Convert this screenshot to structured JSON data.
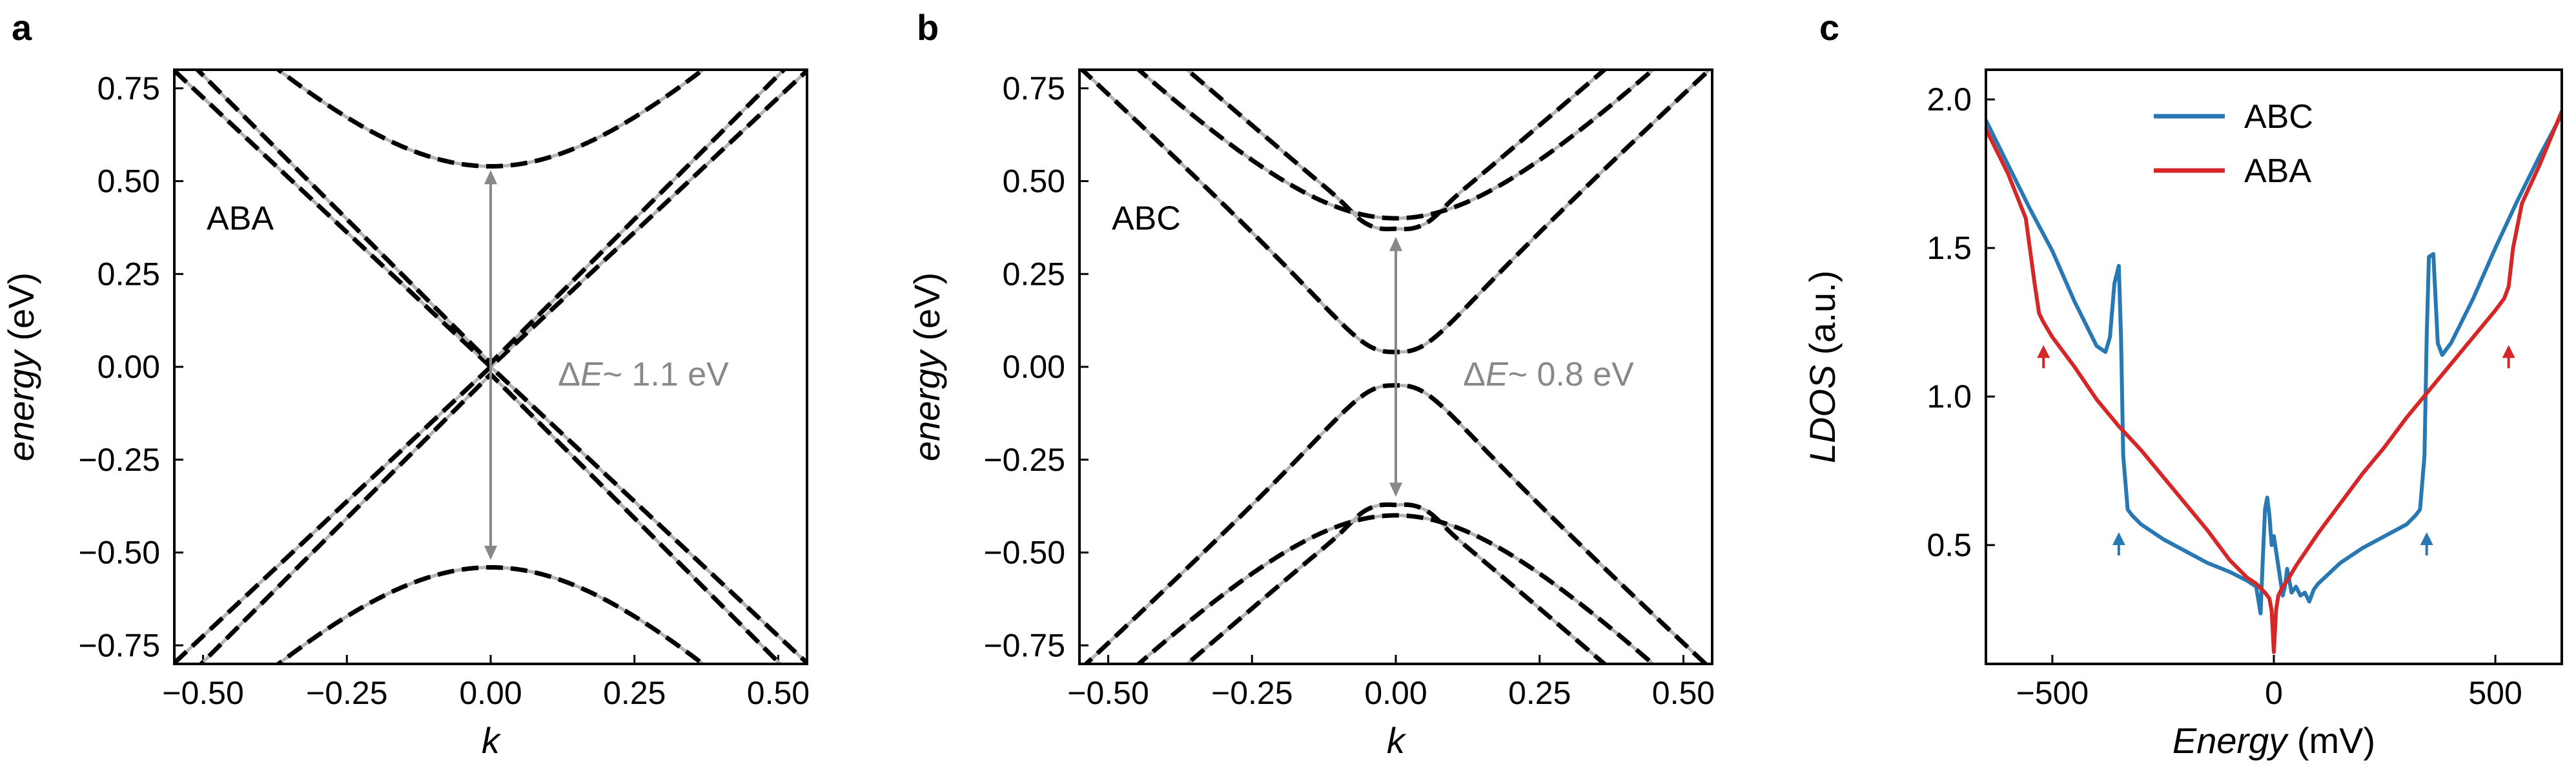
{
  "panels": [
    {
      "letter": "a",
      "type": "line",
      "xlabel": "k",
      "ylabel_italic": "energy",
      "ylabel_unit": " (eV)",
      "xlim": [
        -0.55,
        0.55
      ],
      "ylim": [
        -0.8,
        0.8
      ],
      "xticks": [
        -0.5,
        -0.25,
        0.0,
        0.25,
        0.5
      ],
      "xtick_labels": [
        "−0.50",
        "−0.25",
        "0.00",
        "0.25",
        "0.50"
      ],
      "yticks": [
        0.75,
        0.5,
        0.25,
        0.0,
        -0.25,
        -0.5,
        -0.75
      ],
      "ytick_labels": [
        "0.75",
        "0.50",
        "0.25",
        "0.00",
        "−0.25",
        "−0.50",
        "−0.75"
      ],
      "label": "ABA",
      "gap_label_prefix": "Δ",
      "gap_label_symbol": "E",
      "gap_label_value": "~ 1.1 eV",
      "arrow": [
        0.53,
        -0.52
      ],
      "bands": [
        {
          "kind": "dirac",
          "v": 1.45,
          "m": 0.0,
          "shift": 0.0,
          "sign": 1
        },
        {
          "kind": "dirac",
          "v": 1.45,
          "m": 0.0,
          "shift": 0.0,
          "sign": -1
        },
        {
          "kind": "dirac",
          "v": 1.55,
          "m": 0.0,
          "shift": 0.01,
          "sign": 1
        },
        {
          "kind": "dirac",
          "v": 1.55,
          "m": 0.0,
          "shift": -0.02,
          "sign": -1
        },
        {
          "kind": "hyp",
          "v": 1.6,
          "m": 0.54,
          "shift": 0.0,
          "sign": 1
        },
        {
          "kind": "hyp",
          "v": 1.6,
          "m": 0.54,
          "shift": 0.0,
          "sign": -1
        }
      ]
    },
    {
      "letter": "b",
      "type": "line",
      "xlabel": "k",
      "ylabel_italic": "energy",
      "ylabel_unit": " (eV)",
      "xlim": [
        -0.55,
        0.55
      ],
      "ylim": [
        -0.8,
        0.8
      ],
      "xticks": [
        -0.5,
        -0.25,
        0.0,
        0.25,
        0.5
      ],
      "xtick_labels": [
        "−0.50",
        "−0.25",
        "0.00",
        "0.25",
        "0.50"
      ],
      "yticks": [
        0.75,
        0.5,
        0.25,
        0.0,
        -0.25,
        -0.5,
        -0.75
      ],
      "ytick_labels": [
        "0.75",
        "0.50",
        "0.25",
        "0.00",
        "−0.25",
        "−0.50",
        "−0.75"
      ],
      "label": "ABC",
      "gap_label_prefix": "Δ",
      "gap_label_symbol": "E",
      "gap_label_value": "~ 0.8 eV",
      "arrow": [
        0.35,
        -0.35
      ],
      "bands": [
        {
          "kind": "flat",
          "v": 1.5,
          "m": 0.04,
          "shift": 0.0,
          "sign": 1
        },
        {
          "kind": "flat",
          "v": 1.5,
          "m": 0.05,
          "shift": 0.0,
          "sign": -1
        },
        {
          "kind": "mex",
          "v": 1.45,
          "m": 0.36,
          "shift": 0.0,
          "sign": 1
        },
        {
          "kind": "mex",
          "v": 1.45,
          "m": 0.36,
          "shift": 0.0,
          "sign": -1
        },
        {
          "kind": "hyp",
          "v": 1.55,
          "m": 0.4,
          "shift": 0.0,
          "sign": 1
        },
        {
          "kind": "hyp",
          "v": 1.55,
          "m": 0.4,
          "shift": 0.0,
          "sign": -1
        }
      ]
    },
    {
      "letter": "c",
      "type": "line",
      "xlabel_italic": "Energy",
      "xlabel_unit": " (mV)",
      "ylabel_italic": "LDOS",
      "ylabel_unit": " (a.u.)",
      "xlim": [
        -650,
        650
      ],
      "ylim": [
        0.1,
        2.1
      ],
      "xticks": [
        -500,
        0,
        500
      ],
      "xtick_labels": [
        "−500",
        "0",
        "500"
      ],
      "yticks": [
        2.0,
        1.5,
        1.0,
        0.5
      ],
      "ytick_labels": [
        "2.0",
        "1.5",
        "1.0",
        "0.5"
      ],
      "legend_position": "top",
      "series": [
        {
          "name": "ABC",
          "color": "#2878b4",
          "x": [
            -650,
            -600,
            -550,
            -500,
            -450,
            -400,
            -380,
            -370,
            -360,
            -350,
            -345,
            -340,
            -330,
            -320,
            -300,
            -250,
            -200,
            -150,
            -100,
            -60,
            -40,
            -30,
            -25,
            -20,
            -15,
            -10,
            -5,
            0,
            5,
            10,
            15,
            20,
            25,
            30,
            40,
            50,
            60,
            70,
            80,
            90,
            100,
            150,
            200,
            250,
            300,
            320,
            330,
            340,
            345,
            350,
            360,
            370,
            380,
            400,
            450,
            500,
            550,
            600,
            650
          ],
          "y": [
            1.93,
            1.78,
            1.63,
            1.49,
            1.32,
            1.17,
            1.15,
            1.2,
            1.38,
            1.44,
            1.2,
            0.8,
            0.62,
            0.6,
            0.57,
            0.52,
            0.48,
            0.44,
            0.41,
            0.38,
            0.36,
            0.27,
            0.45,
            0.62,
            0.66,
            0.6,
            0.5,
            0.53,
            0.48,
            0.43,
            0.38,
            0.33,
            0.36,
            0.42,
            0.34,
            0.36,
            0.33,
            0.34,
            0.31,
            0.35,
            0.37,
            0.44,
            0.49,
            0.53,
            0.57,
            0.6,
            0.62,
            0.8,
            1.2,
            1.47,
            1.48,
            1.18,
            1.14,
            1.18,
            1.33,
            1.5,
            1.66,
            1.81,
            1.95
          ]
        },
        {
          "name": "ABA",
          "color": "#d62728",
          "x": [
            -650,
            -600,
            -560,
            -540,
            -530,
            -520,
            -500,
            -450,
            -400,
            -350,
            -300,
            -250,
            -200,
            -150,
            -100,
            -60,
            -40,
            -20,
            -10,
            -5,
            0,
            5,
            10,
            20,
            30,
            50,
            100,
            150,
            200,
            250,
            300,
            350,
            400,
            450,
            500,
            520,
            530,
            540,
            560,
            600,
            650
          ],
          "y": [
            1.9,
            1.75,
            1.6,
            1.38,
            1.28,
            1.25,
            1.2,
            1.1,
            0.99,
            0.9,
            0.82,
            0.73,
            0.64,
            0.55,
            0.45,
            0.39,
            0.37,
            0.34,
            0.32,
            0.28,
            0.14,
            0.28,
            0.33,
            0.36,
            0.38,
            0.43,
            0.54,
            0.64,
            0.74,
            0.83,
            0.93,
            1.02,
            1.11,
            1.2,
            1.29,
            1.33,
            1.37,
            1.5,
            1.65,
            1.78,
            1.96
          ]
        }
      ],
      "markers": [
        {
          "x": -520,
          "y": 1.13,
          "color": "#d62728"
        },
        {
          "x": 530,
          "y": 1.13,
          "color": "#d62728"
        },
        {
          "x": -350,
          "y": 0.5,
          "color": "#2878b4"
        },
        {
          "x": 345,
          "y": 0.5,
          "color": "#2878b4"
        }
      ]
    }
  ]
}
